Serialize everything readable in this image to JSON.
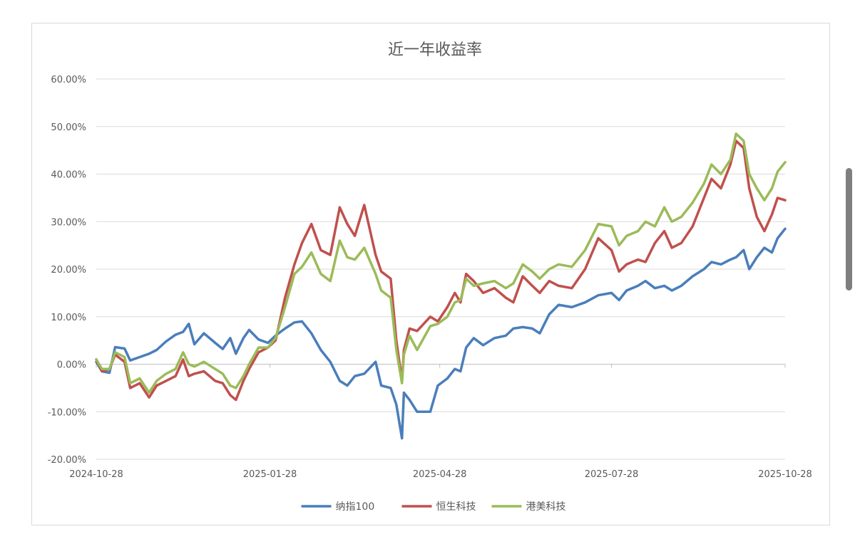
{
  "chart_data": {
    "type": "line",
    "title": "近一年收益率",
    "y_ticks": [
      "60.00%",
      "50.00%",
      "40.00%",
      "30.00%",
      "20.00%",
      "10.00%",
      "0.00%",
      "-10.00%",
      "-20.00%"
    ],
    "ylim": [
      -20,
      60
    ],
    "x_ticks": [
      "2024-10-28",
      "2025-01-28",
      "2025-04-28",
      "2025-07-28",
      "2025-10-28"
    ],
    "xlim": [
      "2024-10-28",
      "2025-10-28"
    ],
    "grid": true,
    "legend_position": "bottom",
    "series": [
      {
        "name": "纳指100",
        "color": "#4a7ebb",
        "points": [
          [
            "2024-10-28",
            0.5
          ],
          [
            "2024-10-31",
            -1.5
          ],
          [
            "2024-11-04",
            -1.8
          ],
          [
            "2024-11-07",
            3.6
          ],
          [
            "2024-11-12",
            3.3
          ],
          [
            "2024-11-15",
            0.8
          ],
          [
            "2024-11-20",
            1.5
          ],
          [
            "2024-11-25",
            2.2
          ],
          [
            "2024-11-29",
            3.0
          ],
          [
            "2024-12-04",
            4.8
          ],
          [
            "2024-12-09",
            6.2
          ],
          [
            "2024-12-13",
            6.8
          ],
          [
            "2024-12-16",
            8.5
          ],
          [
            "2024-12-19",
            4.2
          ],
          [
            "2024-12-24",
            6.5
          ],
          [
            "2024-12-30",
            4.5
          ],
          [
            "2025-01-03",
            3.2
          ],
          [
            "2025-01-07",
            5.5
          ],
          [
            "2025-01-10",
            2.2
          ],
          [
            "2025-01-14",
            5.5
          ],
          [
            "2025-01-17",
            7.2
          ],
          [
            "2025-01-22",
            5.2
          ],
          [
            "2025-01-27",
            4.5
          ],
          [
            "2025-01-31",
            6.0
          ],
          [
            "2025-02-05",
            7.5
          ],
          [
            "2025-02-10",
            8.8
          ],
          [
            "2025-02-14",
            9.0
          ],
          [
            "2025-02-19",
            6.5
          ],
          [
            "2025-02-24",
            3.0
          ],
          [
            "2025-03-01",
            0.5
          ],
          [
            "2025-03-06",
            -3.5
          ],
          [
            "2025-03-10",
            -4.5
          ],
          [
            "2025-03-14",
            -2.5
          ],
          [
            "2025-03-19",
            -2.0
          ],
          [
            "2025-03-25",
            0.5
          ],
          [
            "2025-03-28",
            -4.5
          ],
          [
            "2025-04-02",
            -5.0
          ],
          [
            "2025-04-05",
            -8.5
          ],
          [
            "2025-04-08",
            -15.6
          ],
          [
            "2025-04-09",
            -6.0
          ],
          [
            "2025-04-12",
            -7.5
          ],
          [
            "2025-04-16",
            -10.0
          ],
          [
            "2025-04-23",
            -10.0
          ],
          [
            "2025-04-27",
            -4.5
          ],
          [
            "2025-05-02",
            -3.0
          ],
          [
            "2025-05-06",
            -1.0
          ],
          [
            "2025-05-09",
            -1.5
          ],
          [
            "2025-05-12",
            3.5
          ],
          [
            "2025-05-16",
            5.5
          ],
          [
            "2025-05-21",
            4.0
          ],
          [
            "2025-05-27",
            5.5
          ],
          [
            "2025-06-02",
            6.0
          ],
          [
            "2025-06-06",
            7.5
          ],
          [
            "2025-06-11",
            7.8
          ],
          [
            "2025-06-16",
            7.5
          ],
          [
            "2025-06-20",
            6.5
          ],
          [
            "2025-06-25",
            10.5
          ],
          [
            "2025-06-30",
            12.5
          ],
          [
            "2025-07-07",
            12.0
          ],
          [
            "2025-07-14",
            13.0
          ],
          [
            "2025-07-21",
            14.5
          ],
          [
            "2025-07-28",
            15.0
          ],
          [
            "2025-08-01",
            13.5
          ],
          [
            "2025-08-05",
            15.5
          ],
          [
            "2025-08-11",
            16.5
          ],
          [
            "2025-08-15",
            17.5
          ],
          [
            "2025-08-20",
            16.0
          ],
          [
            "2025-08-25",
            16.5
          ],
          [
            "2025-08-29",
            15.5
          ],
          [
            "2025-09-03",
            16.5
          ],
          [
            "2025-09-09",
            18.5
          ],
          [
            "2025-09-15",
            20.0
          ],
          [
            "2025-09-19",
            21.5
          ],
          [
            "2025-09-24",
            21.0
          ],
          [
            "2025-09-29",
            22.0
          ],
          [
            "2025-10-02",
            22.5
          ],
          [
            "2025-10-06",
            24.0
          ],
          [
            "2025-10-09",
            20.0
          ],
          [
            "2025-10-13",
            22.5
          ],
          [
            "2025-10-17",
            24.5
          ],
          [
            "2025-10-21",
            23.5
          ],
          [
            "2025-10-24",
            26.5
          ],
          [
            "2025-10-28",
            28.5
          ]
        ]
      },
      {
        "name": "恒生科技",
        "color": "#c0504d",
        "points": [
          [
            "2024-10-28",
            1.0
          ],
          [
            "2024-10-31",
            -1.5
          ],
          [
            "2024-11-04",
            -1.0
          ],
          [
            "2024-11-07",
            2.0
          ],
          [
            "2024-11-12",
            0.5
          ],
          [
            "2024-11-15",
            -5.0
          ],
          [
            "2024-11-20",
            -4.0
          ],
          [
            "2024-11-25",
            -7.0
          ],
          [
            "2024-11-29",
            -4.5
          ],
          [
            "2024-12-04",
            -3.5
          ],
          [
            "2024-12-09",
            -2.5
          ],
          [
            "2024-12-13",
            1.0
          ],
          [
            "2024-12-16",
            -2.5
          ],
          [
            "2024-12-19",
            -2.0
          ],
          [
            "2024-12-24",
            -1.5
          ],
          [
            "2024-12-30",
            -3.5
          ],
          [
            "2025-01-03",
            -4.0
          ],
          [
            "2025-01-07",
            -6.5
          ],
          [
            "2025-01-10",
            -7.5
          ],
          [
            "2025-01-14",
            -3.5
          ],
          [
            "2025-01-17",
            -1.0
          ],
          [
            "2025-01-22",
            2.5
          ],
          [
            "2025-01-27",
            3.5
          ],
          [
            "2025-01-31",
            5.0
          ],
          [
            "2025-02-05",
            14.0
          ],
          [
            "2025-02-10",
            21.0
          ],
          [
            "2025-02-14",
            25.5
          ],
          [
            "2025-02-19",
            29.5
          ],
          [
            "2025-02-24",
            24.0
          ],
          [
            "2025-03-01",
            23.0
          ],
          [
            "2025-03-06",
            33.0
          ],
          [
            "2025-03-10",
            29.5
          ],
          [
            "2025-03-14",
            27.0
          ],
          [
            "2025-03-19",
            33.5
          ],
          [
            "2025-03-25",
            23.0
          ],
          [
            "2025-03-28",
            19.5
          ],
          [
            "2025-04-02",
            18.0
          ],
          [
            "2025-04-05",
            5.0
          ],
          [
            "2025-04-08",
            -3.5
          ],
          [
            "2025-04-09",
            3.0
          ],
          [
            "2025-04-12",
            7.5
          ],
          [
            "2025-04-16",
            7.0
          ],
          [
            "2025-04-23",
            10.0
          ],
          [
            "2025-04-27",
            9.0
          ],
          [
            "2025-05-02",
            12.0
          ],
          [
            "2025-05-06",
            15.0
          ],
          [
            "2025-05-09",
            13.0
          ],
          [
            "2025-05-12",
            19.0
          ],
          [
            "2025-05-16",
            17.5
          ],
          [
            "2025-05-21",
            15.0
          ],
          [
            "2025-05-27",
            16.0
          ],
          [
            "2025-06-02",
            14.0
          ],
          [
            "2025-06-06",
            13.0
          ],
          [
            "2025-06-11",
            18.5
          ],
          [
            "2025-06-16",
            16.5
          ],
          [
            "2025-06-20",
            15.0
          ],
          [
            "2025-06-25",
            17.5
          ],
          [
            "2025-06-30",
            16.5
          ],
          [
            "2025-07-07",
            16.0
          ],
          [
            "2025-07-14",
            20.0
          ],
          [
            "2025-07-21",
            26.5
          ],
          [
            "2025-07-28",
            24.0
          ],
          [
            "2025-08-01",
            19.5
          ],
          [
            "2025-08-05",
            21.0
          ],
          [
            "2025-08-11",
            22.0
          ],
          [
            "2025-08-15",
            21.5
          ],
          [
            "2025-08-20",
            25.5
          ],
          [
            "2025-08-25",
            28.0
          ],
          [
            "2025-08-29",
            24.5
          ],
          [
            "2025-09-03",
            25.5
          ],
          [
            "2025-09-09",
            29.0
          ],
          [
            "2025-09-15",
            35.0
          ],
          [
            "2025-09-19",
            39.0
          ],
          [
            "2025-09-24",
            37.0
          ],
          [
            "2025-09-29",
            42.0
          ],
          [
            "2025-10-02",
            47.0
          ],
          [
            "2025-10-06",
            45.5
          ],
          [
            "2025-10-09",
            37.0
          ],
          [
            "2025-10-13",
            31.0
          ],
          [
            "2025-10-17",
            28.0
          ],
          [
            "2025-10-21",
            31.5
          ],
          [
            "2025-10-24",
            35.0
          ],
          [
            "2025-10-28",
            34.5
          ]
        ]
      },
      {
        "name": "港美科技",
        "color": "#9bbb59",
        "points": [
          [
            "2024-10-28",
            1.0
          ],
          [
            "2024-10-31",
            -1.0
          ],
          [
            "2024-11-04",
            -1.0
          ],
          [
            "2024-11-07",
            2.5
          ],
          [
            "2024-11-12",
            1.5
          ],
          [
            "2024-11-15",
            -4.0
          ],
          [
            "2024-11-20",
            -3.0
          ],
          [
            "2024-11-25",
            -6.0
          ],
          [
            "2024-11-29",
            -3.5
          ],
          [
            "2024-12-04",
            -2.0
          ],
          [
            "2024-12-09",
            -1.0
          ],
          [
            "2024-12-13",
            2.5
          ],
          [
            "2024-12-16",
            0.0
          ],
          [
            "2024-12-19",
            -0.5
          ],
          [
            "2024-12-24",
            0.5
          ],
          [
            "2024-12-30",
            -1.0
          ],
          [
            "2025-01-03",
            -2.0
          ],
          [
            "2025-01-07",
            -4.5
          ],
          [
            "2025-01-10",
            -5.0
          ],
          [
            "2025-01-14",
            -2.5
          ],
          [
            "2025-01-17",
            0.0
          ],
          [
            "2025-01-22",
            3.5
          ],
          [
            "2025-01-27",
            3.5
          ],
          [
            "2025-01-31",
            5.5
          ],
          [
            "2025-02-05",
            12.0
          ],
          [
            "2025-02-10",
            19.0
          ],
          [
            "2025-02-14",
            20.5
          ],
          [
            "2025-02-19",
            23.5
          ],
          [
            "2025-02-24",
            19.0
          ],
          [
            "2025-03-01",
            17.5
          ],
          [
            "2025-03-06",
            26.0
          ],
          [
            "2025-03-10",
            22.5
          ],
          [
            "2025-03-14",
            22.0
          ],
          [
            "2025-03-19",
            24.5
          ],
          [
            "2025-03-25",
            19.0
          ],
          [
            "2025-03-28",
            15.5
          ],
          [
            "2025-04-02",
            14.0
          ],
          [
            "2025-04-05",
            3.0
          ],
          [
            "2025-04-08",
            -4.0
          ],
          [
            "2025-04-09",
            2.0
          ],
          [
            "2025-04-12",
            6.0
          ],
          [
            "2025-04-16",
            3.0
          ],
          [
            "2025-04-23",
            8.0
          ],
          [
            "2025-04-27",
            8.5
          ],
          [
            "2025-05-02",
            10.0
          ],
          [
            "2025-05-06",
            13.0
          ],
          [
            "2025-05-09",
            13.5
          ],
          [
            "2025-05-12",
            18.0
          ],
          [
            "2025-05-16",
            16.5
          ],
          [
            "2025-05-21",
            17.0
          ],
          [
            "2025-05-27",
            17.5
          ],
          [
            "2025-06-02",
            16.0
          ],
          [
            "2025-06-06",
            17.0
          ],
          [
            "2025-06-11",
            21.0
          ],
          [
            "2025-06-16",
            19.5
          ],
          [
            "2025-06-20",
            18.0
          ],
          [
            "2025-06-25",
            20.0
          ],
          [
            "2025-06-30",
            21.0
          ],
          [
            "2025-07-07",
            20.5
          ],
          [
            "2025-07-14",
            24.0
          ],
          [
            "2025-07-21",
            29.5
          ],
          [
            "2025-07-28",
            29.0
          ],
          [
            "2025-08-01",
            25.0
          ],
          [
            "2025-08-05",
            27.0
          ],
          [
            "2025-08-11",
            28.0
          ],
          [
            "2025-08-15",
            30.0
          ],
          [
            "2025-08-20",
            29.0
          ],
          [
            "2025-08-25",
            33.0
          ],
          [
            "2025-08-29",
            30.0
          ],
          [
            "2025-09-03",
            31.0
          ],
          [
            "2025-09-09",
            34.0
          ],
          [
            "2025-09-15",
            38.0
          ],
          [
            "2025-09-19",
            42.0
          ],
          [
            "2025-09-24",
            40.0
          ],
          [
            "2025-09-29",
            43.0
          ],
          [
            "2025-10-02",
            48.5
          ],
          [
            "2025-10-06",
            47.0
          ],
          [
            "2025-10-09",
            40.0
          ],
          [
            "2025-10-13",
            37.0
          ],
          [
            "2025-10-17",
            34.5
          ],
          [
            "2025-10-21",
            37.0
          ],
          [
            "2025-10-24",
            40.5
          ],
          [
            "2025-10-28",
            42.5
          ]
        ]
      }
    ]
  }
}
